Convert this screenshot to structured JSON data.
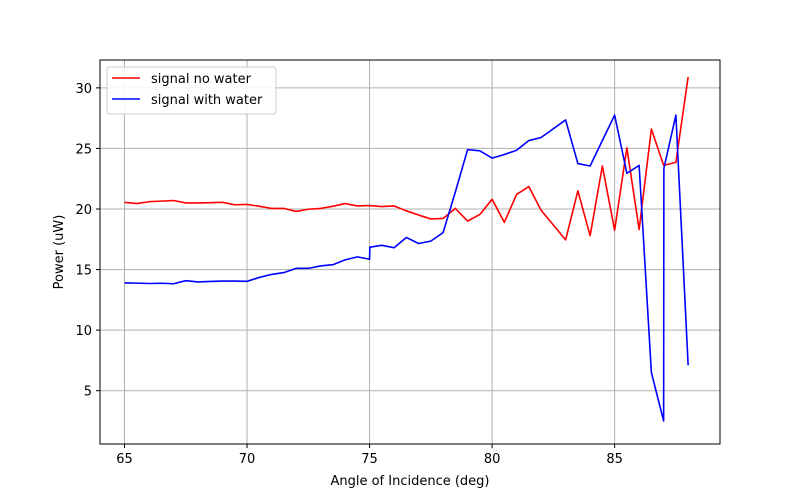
{
  "chart_data": {
    "type": "line",
    "xlabel": "Angle of Incidence (deg)",
    "ylabel": "Power (uW)",
    "xlim": [
      64,
      89.3
    ],
    "ylim": [
      0.6,
      32.3
    ],
    "xticks": [
      65,
      70,
      75,
      80,
      85
    ],
    "yticks": [
      5,
      10,
      15,
      20,
      25,
      30
    ],
    "grid": true,
    "legend_position": "upper-left",
    "series": [
      {
        "name": "signal no water",
        "color": "#ff0000",
        "points": [
          [
            65,
            20.55
          ],
          [
            65.5,
            20.45
          ],
          [
            66,
            20.6
          ],
          [
            66.5,
            20.65
          ],
          [
            67,
            20.7
          ],
          [
            67.5,
            20.5
          ],
          [
            68,
            20.5
          ],
          [
            68.5,
            20.52
          ],
          [
            69,
            20.55
          ],
          [
            69.5,
            20.35
          ],
          [
            70,
            20.38
          ],
          [
            70.5,
            20.22
          ],
          [
            71,
            20.05
          ],
          [
            71.5,
            20.05
          ],
          [
            72,
            19.8
          ],
          [
            72.5,
            19.98
          ],
          [
            73,
            20.05
          ],
          [
            73.5,
            20.22
          ],
          [
            74,
            20.45
          ],
          [
            74.5,
            20.25
          ],
          [
            75,
            20.28
          ],
          [
            75.5,
            20.2
          ],
          [
            76,
            20.25
          ],
          [
            76.5,
            19.85
          ],
          [
            77,
            19.5
          ],
          [
            77.5,
            19.18
          ],
          [
            78,
            19.22
          ],
          [
            78.5,
            20.05
          ],
          [
            79,
            19.0
          ],
          [
            79.5,
            19.55
          ],
          [
            80,
            20.8
          ],
          [
            80.5,
            18.9
          ],
          [
            81,
            21.2
          ],
          [
            81.5,
            21.85
          ],
          [
            82,
            19.9
          ],
          [
            83,
            17.45
          ],
          [
            83.5,
            21.5
          ],
          [
            84,
            17.8
          ],
          [
            84.5,
            23.55
          ],
          [
            85,
            18.25
          ],
          [
            85.5,
            25.05
          ],
          [
            86,
            18.3
          ],
          [
            86.5,
            26.6
          ],
          [
            87,
            23.6
          ],
          [
            87.5,
            23.85
          ],
          [
            88,
            30.9
          ]
        ]
      },
      {
        "name": "signal with water",
        "color": "#0000ff",
        "points": [
          [
            65,
            13.9
          ],
          [
            65.5,
            13.88
          ],
          [
            66,
            13.85
          ],
          [
            66.5,
            13.87
          ],
          [
            67,
            13.83
          ],
          [
            67.5,
            14.08
          ],
          [
            68,
            13.98
          ],
          [
            68.5,
            14.02
          ],
          [
            69,
            14.05
          ],
          [
            69.5,
            14.05
          ],
          [
            70,
            14.03
          ],
          [
            70.5,
            14.35
          ],
          [
            71,
            14.6
          ],
          [
            71.5,
            14.75
          ],
          [
            72,
            15.1
          ],
          [
            72.5,
            15.1
          ],
          [
            73,
            15.3
          ],
          [
            73.5,
            15.4
          ],
          [
            74,
            15.8
          ],
          [
            74.5,
            16.05
          ],
          [
            75,
            15.85
          ],
          [
            75.01,
            16.85
          ],
          [
            75.5,
            17.0
          ],
          [
            76,
            16.8
          ],
          [
            76.5,
            17.65
          ],
          [
            77,
            17.15
          ],
          [
            77.5,
            17.35
          ],
          [
            78,
            18.05
          ],
          [
            78.5,
            21.4
          ],
          [
            79,
            24.9
          ],
          [
            79.5,
            24.8
          ],
          [
            80,
            24.2
          ],
          [
            80.5,
            24.5
          ],
          [
            81,
            24.85
          ],
          [
            81.5,
            25.65
          ],
          [
            82,
            25.9
          ],
          [
            83,
            27.35
          ],
          [
            83.5,
            23.75
          ],
          [
            84,
            23.55
          ],
          [
            85,
            27.75
          ],
          [
            85.5,
            22.95
          ],
          [
            86,
            23.6
          ],
          [
            86.5,
            6.5
          ],
          [
            87,
            2.5
          ],
          [
            87.01,
            23.35
          ],
          [
            87.5,
            27.75
          ],
          [
            88,
            7.1
          ]
        ]
      }
    ]
  }
}
